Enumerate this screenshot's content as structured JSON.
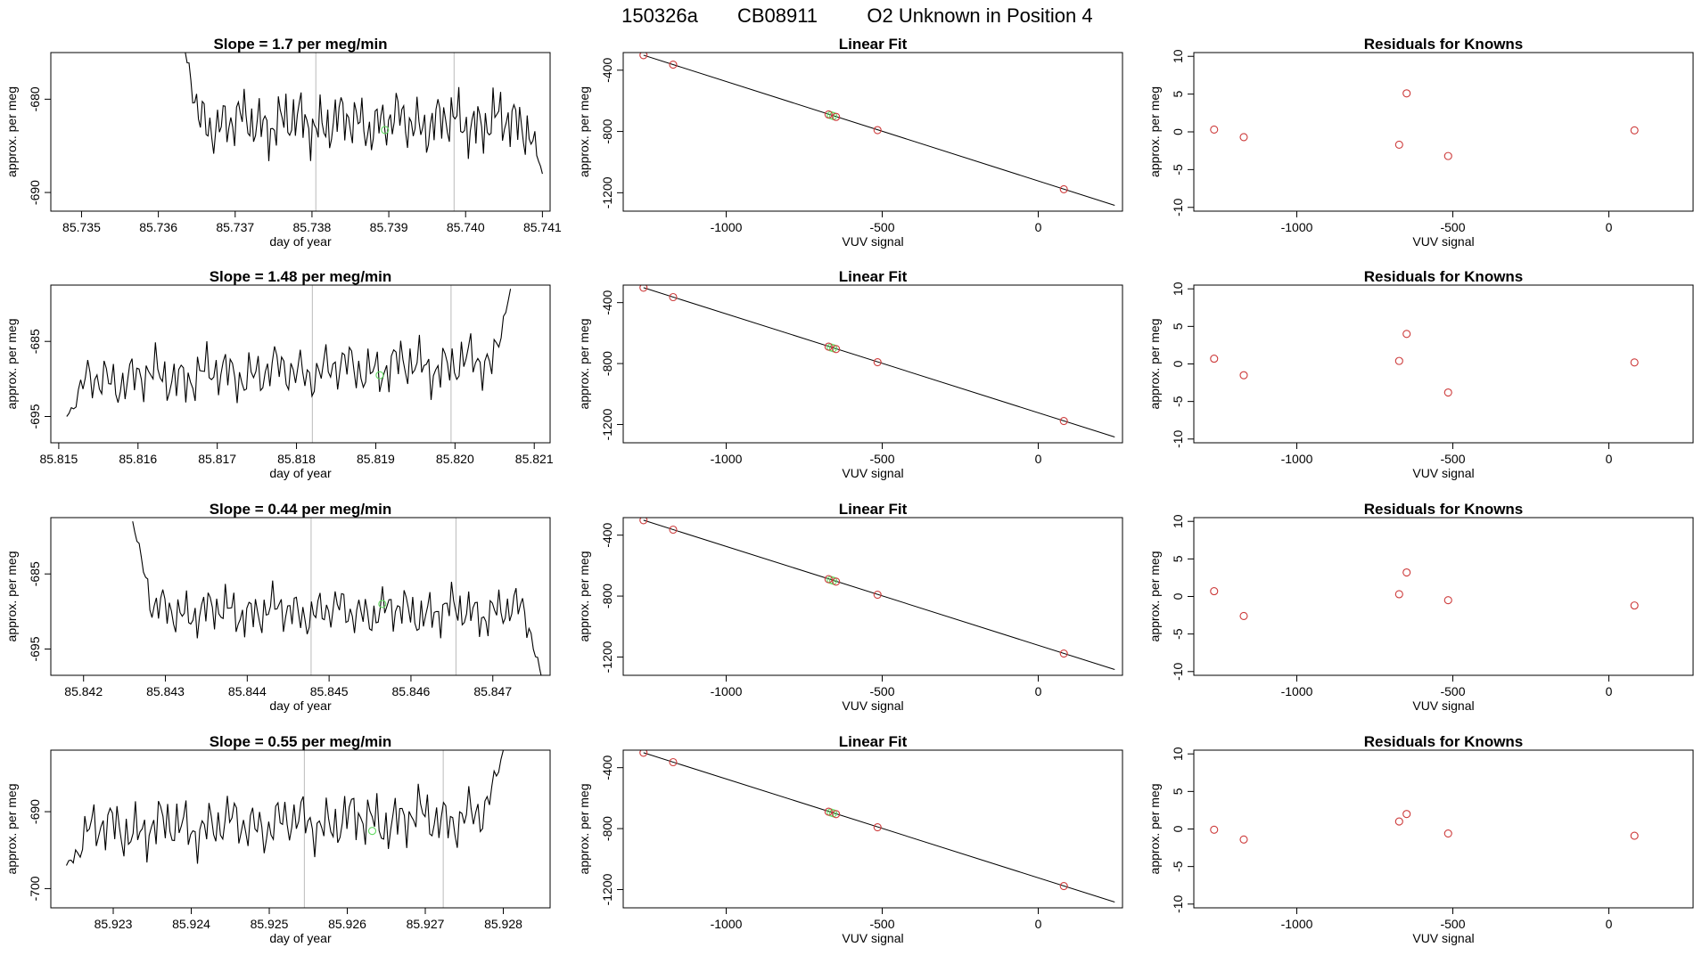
{
  "suptitle": [
    "150326a",
    "CB08911",
    "O2 Unknown in Position  4"
  ],
  "colors": {
    "line": "#000000",
    "known": "#cd3b3b",
    "unknown": "#5fd95f",
    "vline": "#bbbbbb",
    "frame": "#000000"
  },
  "chart_data": [
    {
      "type": "line",
      "panel": "timeseries",
      "row": 1,
      "title": "Slope =  1.7  per meg/min",
      "xlabel": "day of year",
      "ylabel": "approx. per meg",
      "xlim": [
        85.7346,
        85.7411
      ],
      "ylim": [
        -692,
        -675
      ],
      "xticks": [
        85.735,
        85.736,
        85.737,
        85.738,
        85.739,
        85.74,
        85.741
      ],
      "xtick_labels": [
        "85.735",
        "85.736",
        "85.737",
        "85.738",
        "85.739",
        "85.740",
        "85.741"
      ],
      "yticks": [
        -680,
        -690
      ],
      "ytick_labels": [
        "-680",
        "-690"
      ],
      "x_start": 85.7363,
      "x_end": 85.741,
      "y_start": -673,
      "y_end": -688,
      "base": -682.5,
      "amp": 3.3,
      "trend": 0.0,
      "vlines": [
        85.73805,
        85.73985
      ],
      "unknown_point": {
        "x": 85.73895,
        "y": -683.3
      }
    },
    {
      "type": "scatter",
      "panel": "linear-fit",
      "row": 1,
      "title": "Linear Fit",
      "xlabel": "VUV signal",
      "ylabel": "approx. per meg",
      "xlim": [
        -1330,
        270
      ],
      "ylim": [
        -1320,
        -285
      ],
      "xticks": [
        -1000,
        -500,
        0
      ],
      "xtick_labels": [
        "-1000",
        "-500",
        "0"
      ],
      "yticks": [
        -400,
        -800,
        -1200
      ],
      "ytick_labels": [
        "-400",
        "-800",
        "-1200"
      ],
      "fit_line": {
        "x": [
          -1265,
          245
        ],
        "y": [
          -302,
          -1282
        ]
      },
      "knowns": {
        "x": [
          -1265,
          -1170,
          -672,
          -648,
          -515,
          82
        ],
        "y": [
          -302,
          -364,
          -689,
          -705,
          -791,
          -1177
        ]
      },
      "unknown": {
        "x": [
          -665,
          -657
        ],
        "y": [
          -694,
          -699
        ]
      }
    },
    {
      "type": "scatter",
      "panel": "residuals",
      "row": 1,
      "title": "Residuals for Knowns",
      "xlabel": "VUV signal",
      "ylabel": "approx. per meg",
      "xlim": [
        -1330,
        270
      ],
      "ylim": [
        -10.5,
        10.5
      ],
      "xticks": [
        -1000,
        -500,
        0
      ],
      "xtick_labels": [
        "-1000",
        "-500",
        "0"
      ],
      "yticks": [
        10,
        5,
        0,
        -5,
        -10
      ],
      "ytick_labels": [
        "10",
        "5",
        "0",
        "-5",
        "-10"
      ],
      "knowns": {
        "x": [
          -1265,
          -1170,
          -672,
          -648,
          -515,
          82
        ],
        "y": [
          0.3,
          -0.7,
          -1.7,
          5.1,
          -3.2,
          0.2
        ]
      }
    },
    {
      "type": "line",
      "panel": "timeseries",
      "row": 2,
      "title": "Slope =  1.48  per meg/min",
      "xlabel": "day of year",
      "ylabel": "approx. per meg",
      "xlim": [
        85.8149,
        85.8212
      ],
      "ylim": [
        -698.5,
        -677.5
      ],
      "xticks": [
        85.815,
        85.816,
        85.817,
        85.818,
        85.819,
        85.82,
        85.821
      ],
      "xtick_labels": [
        "85.815",
        "85.816",
        "85.817",
        "85.818",
        "85.819",
        "85.820",
        "85.821"
      ],
      "yticks": [
        -685,
        -695
      ],
      "ytick_labels": [
        "-685",
        "-695"
      ],
      "x_start": 85.8151,
      "x_end": 85.8207,
      "y_start": -695,
      "y_end": -678,
      "base": -689,
      "amp": 3.6,
      "trend": 2.5,
      "vlines": [
        85.8182,
        85.81995
      ],
      "unknown_point": {
        "x": 85.81905,
        "y": -689.5
      }
    },
    {
      "type": "scatter",
      "panel": "linear-fit",
      "row": 2,
      "title": "Linear Fit",
      "xlabel": "VUV signal",
      "ylabel": "approx. per meg",
      "xlim": [
        -1330,
        270
      ],
      "ylim": [
        -1320,
        -285
      ],
      "xticks": [
        -1000,
        -500,
        0
      ],
      "xtick_labels": [
        "-1000",
        "-500",
        "0"
      ],
      "yticks": [
        -400,
        -800,
        -1200
      ],
      "ytick_labels": [
        "-400",
        "-800",
        "-1200"
      ],
      "fit_line": {
        "x": [
          -1265,
          245
        ],
        "y": [
          -302,
          -1282
        ]
      },
      "knowns": {
        "x": [
          -1265,
          -1170,
          -672,
          -648,
          -515,
          82
        ],
        "y": [
          -302,
          -364,
          -689,
          -705,
          -791,
          -1177
        ]
      },
      "unknown": {
        "x": [
          -665,
          -657
        ],
        "y": [
          -694,
          -699
        ]
      }
    },
    {
      "type": "scatter",
      "panel": "residuals",
      "row": 2,
      "title": "Residuals for Knowns",
      "xlabel": "VUV signal",
      "ylabel": "approx. per meg",
      "xlim": [
        -1330,
        270
      ],
      "ylim": [
        -10.5,
        10.5
      ],
      "xticks": [
        -1000,
        -500,
        0
      ],
      "xtick_labels": [
        "-1000",
        "-500",
        "0"
      ],
      "yticks": [
        10,
        5,
        0,
        -5,
        -10
      ],
      "ytick_labels": [
        "10",
        "5",
        "0",
        "-5",
        "-10"
      ],
      "knowns": {
        "x": [
          -1265,
          -1170,
          -672,
          -648,
          -515,
          82
        ],
        "y": [
          0.7,
          -1.5,
          0.4,
          4.0,
          -3.8,
          0.2
        ]
      }
    },
    {
      "type": "line",
      "panel": "timeseries",
      "row": 3,
      "title": "Slope =  0.44  per meg/min",
      "xlabel": "day of year",
      "ylabel": "approx. per meg",
      "xlim": [
        85.8416,
        85.8477
      ],
      "ylim": [
        -698.5,
        -677.5
      ],
      "xticks": [
        85.842,
        85.843,
        85.844,
        85.845,
        85.846,
        85.847
      ],
      "xtick_labels": [
        "85.842",
        "85.843",
        "85.844",
        "85.845",
        "85.846",
        "85.847"
      ],
      "yticks": [
        -685,
        -695
      ],
      "ytick_labels": [
        "-685",
        "-695"
      ],
      "x_start": 85.8426,
      "x_end": 85.8476,
      "y_start": -678,
      "y_end": -699,
      "base": -690,
      "amp": 3.2,
      "trend": 0.0,
      "vlines": [
        85.84478,
        85.84655
      ],
      "unknown_point": {
        "x": 85.84565,
        "y": -689
      }
    },
    {
      "type": "scatter",
      "panel": "linear-fit",
      "row": 3,
      "title": "Linear Fit",
      "xlabel": "VUV signal",
      "ylabel": "approx. per meg",
      "xlim": [
        -1330,
        270
      ],
      "ylim": [
        -1320,
        -285
      ],
      "xticks": [
        -1000,
        -500,
        0
      ],
      "xtick_labels": [
        "-1000",
        "-500",
        "0"
      ],
      "yticks": [
        -400,
        -800,
        -1200
      ],
      "ytick_labels": [
        "-400",
        "-800",
        "-1200"
      ],
      "fit_line": {
        "x": [
          -1265,
          245
        ],
        "y": [
          -302,
          -1282
        ]
      },
      "knowns": {
        "x": [
          -1265,
          -1170,
          -672,
          -648,
          -515,
          82
        ],
        "y": [
          -302,
          -364,
          -689,
          -705,
          -791,
          -1177
        ]
      },
      "unknown": {
        "x": [
          -665,
          -657
        ],
        "y": [
          -694,
          -699
        ]
      }
    },
    {
      "type": "scatter",
      "panel": "residuals",
      "row": 3,
      "title": "Residuals for Knowns",
      "xlabel": "VUV signal",
      "ylabel": "approx. per meg",
      "xlim": [
        -1330,
        270
      ],
      "ylim": [
        -10.5,
        10.5
      ],
      "xticks": [
        -1000,
        -500,
        0
      ],
      "xtick_labels": [
        "-1000",
        "-500",
        "0"
      ],
      "yticks": [
        10,
        5,
        0,
        -5,
        -10
      ],
      "ytick_labels": [
        "10",
        "5",
        "0",
        "-5",
        "-10"
      ],
      "knowns": {
        "x": [
          -1265,
          -1170,
          -672,
          -648,
          -515,
          82
        ],
        "y": [
          0.7,
          -2.6,
          0.3,
          3.2,
          -0.5,
          -1.2
        ]
      }
    },
    {
      "type": "line",
      "panel": "timeseries",
      "row": 4,
      "title": "Slope =  0.55  per meg/min",
      "xlabel": "day of year",
      "ylabel": "approx. per meg",
      "xlim": [
        85.9222,
        85.9286
      ],
      "ylim": [
        -702.5,
        -682
      ],
      "xticks": [
        85.923,
        85.924,
        85.925,
        85.926,
        85.927,
        85.928
      ],
      "xtick_labels": [
        "85.923",
        "85.924",
        "85.925",
        "85.926",
        "85.927",
        "85.928"
      ],
      "yticks": [
        -690,
        -700
      ],
      "ytick_labels": [
        "-690",
        "-700"
      ],
      "x_start": 85.9224,
      "x_end": 85.928,
      "y_start": -697,
      "y_end": -682,
      "base": -691.5,
      "amp": 3.8,
      "trend": 2.0,
      "vlines": [
        85.92545,
        85.92723
      ],
      "unknown_point": {
        "x": 85.92632,
        "y": -692.5
      }
    },
    {
      "type": "scatter",
      "panel": "linear-fit",
      "row": 4,
      "title": "Linear Fit",
      "xlabel": "VUV signal",
      "ylabel": "approx. per meg",
      "xlim": [
        -1330,
        270
      ],
      "ylim": [
        -1320,
        -285
      ],
      "xticks": [
        -1000,
        -500,
        0
      ],
      "xtick_labels": [
        "-1000",
        "-500",
        "0"
      ],
      "yticks": [
        -400,
        -800,
        -1200
      ],
      "ytick_labels": [
        "-400",
        "-800",
        "-1200"
      ],
      "fit_line": {
        "x": [
          -1265,
          245
        ],
        "y": [
          -302,
          -1282
        ]
      },
      "knowns": {
        "x": [
          -1265,
          -1170,
          -672,
          -648,
          -515,
          82
        ],
        "y": [
          -302,
          -364,
          -689,
          -705,
          -791,
          -1177
        ]
      },
      "unknown": {
        "x": [
          -665,
          -657
        ],
        "y": [
          -694,
          -699
        ]
      }
    },
    {
      "type": "scatter",
      "panel": "residuals",
      "row": 4,
      "title": "Residuals for Knowns",
      "xlabel": "VUV signal",
      "ylabel": "approx. per meg",
      "xlim": [
        -1330,
        270
      ],
      "ylim": [
        -10.5,
        10.5
      ],
      "xticks": [
        -1000,
        -500,
        0
      ],
      "xtick_labels": [
        "-1000",
        "-500",
        "0"
      ],
      "yticks": [
        10,
        5,
        0,
        -5,
        -10
      ],
      "ytick_labels": [
        "10",
        "5",
        "0",
        "-5",
        "-10"
      ],
      "knowns": {
        "x": [
          -1265,
          -1170,
          -672,
          -648,
          -515,
          82
        ],
        "y": [
          -0.1,
          -1.4,
          1.0,
          2.0,
          -0.6,
          -0.9
        ]
      }
    }
  ]
}
